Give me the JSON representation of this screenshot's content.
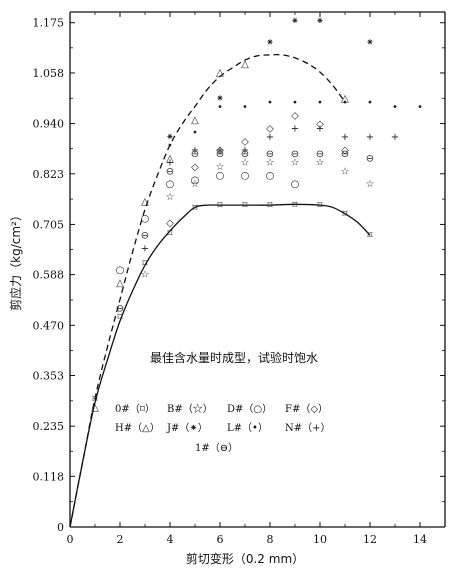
{
  "chart_data": {
    "type": "scatter",
    "title": "",
    "xlabel": "剪切变形（0.2 mm）",
    "ylabel": "剪应力（kg/cm²）",
    "xlim": [
      0,
      15
    ],
    "ylim": [
      0,
      1.2
    ],
    "x_ticks": [
      "0",
      "2",
      "4",
      "6",
      "8",
      "10",
      "12",
      "14"
    ],
    "x_tick_values": [
      0,
      2,
      4,
      6,
      8,
      10,
      12,
      14
    ],
    "y_ticks": [
      "0",
      "0.118",
      "0.235",
      "0.353",
      "0.470",
      "0.588",
      "0.705",
      "0.823",
      "0.940",
      "1.058",
      "1.175"
    ],
    "y_tick_values": [
      0,
      0.118,
      0.235,
      0.353,
      0.47,
      0.588,
      0.705,
      0.823,
      0.94,
      1.058,
      1.175
    ],
    "annotation": "最佳含水量时成型，试验时饱水",
    "legend": [
      {
        "label": "0#（",
        "symbol": "⌑",
        "close": "）"
      },
      {
        "label": "B#（",
        "symbol": "☆",
        "close": "）"
      },
      {
        "label": "D#（",
        "symbol": "○",
        "close": "）"
      },
      {
        "label": "F#（",
        "symbol": "◇",
        "close": "）"
      },
      {
        "label": "H#（",
        "symbol": "△",
        "close": "）"
      },
      {
        "label": "J#（",
        "symbol": "⁕",
        "close": "）"
      },
      {
        "label": "L#（",
        "symbol": "•",
        "close": "）"
      },
      {
        "label": "N#（",
        "symbol": "+",
        "close": "）"
      },
      {
        "label": "1#（",
        "symbol": "⊖",
        "close": "）"
      }
    ],
    "curves": [
      {
        "style": "solid",
        "x": [
          0,
          0.5,
          1,
          1.5,
          2,
          2.5,
          3,
          3.5,
          4,
          4.5,
          5,
          5.5,
          6,
          7,
          8,
          9,
          10,
          10.5,
          11,
          11.5,
          12
        ],
        "y": [
          0,
          0.15,
          0.29,
          0.39,
          0.48,
          0.55,
          0.61,
          0.655,
          0.69,
          0.72,
          0.745,
          0.75,
          0.75,
          0.75,
          0.75,
          0.752,
          0.75,
          0.745,
          0.73,
          0.71,
          0.68
        ]
      },
      {
        "style": "dashed",
        "x": [
          0,
          0.5,
          1,
          1.5,
          2,
          2.5,
          3,
          3.5,
          4,
          4.5,
          5,
          5.5,
          6,
          6.5,
          7,
          7.5,
          8,
          8.5,
          9,
          9.5,
          10,
          10.5,
          11
        ],
        "y": [
          0,
          0.15,
          0.3,
          0.42,
          0.53,
          0.64,
          0.74,
          0.82,
          0.89,
          0.94,
          0.98,
          1.02,
          1.05,
          1.07,
          1.088,
          1.098,
          1.1,
          1.1,
          1.093,
          1.08,
          1.06,
          1.03,
          0.99
        ]
      }
    ],
    "series": [
      {
        "symbol": "⌑",
        "x": [
          1,
          2,
          3,
          4,
          5,
          6,
          7,
          8,
          9,
          10,
          11,
          12
        ],
        "y": [
          0.3,
          0.49,
          0.615,
          0.685,
          0.745,
          0.75,
          0.75,
          0.75,
          0.752,
          0.75,
          0.73,
          0.68
        ]
      },
      {
        "symbol": "☆",
        "x": [
          3,
          4,
          5,
          6,
          7,
          8,
          9,
          10,
          11,
          12
        ],
        "y": [
          0.59,
          0.77,
          0.8,
          0.84,
          0.85,
          0.85,
          0.85,
          0.85,
          0.83,
          0.8
        ]
      },
      {
        "symbol": "○",
        "x": [
          2,
          3,
          4,
          5,
          6,
          7,
          8,
          9
        ],
        "y": [
          0.6,
          0.72,
          0.8,
          0.81,
          0.82,
          0.82,
          0.82,
          0.8
        ]
      },
      {
        "symbol": "◇",
        "x": [
          4,
          5,
          6,
          7,
          8,
          9,
          10,
          11
        ],
        "y": [
          0.71,
          0.84,
          0.88,
          0.9,
          0.93,
          0.96,
          0.94,
          0.88
        ]
      },
      {
        "symbol": "△",
        "x": [
          1,
          2,
          3,
          4,
          5,
          6,
          7,
          11
        ],
        "y": [
          0.28,
          0.57,
          0.76,
          0.86,
          0.95,
          1.06,
          1.08,
          1.0
        ]
      },
      {
        "symbol": "⁕",
        "x": [
          4,
          6,
          8,
          9,
          10,
          12
        ],
        "y": [
          0.91,
          1.0,
          1.13,
          1.18,
          1.18,
          1.13
        ]
      },
      {
        "symbol": "•",
        "x": [
          4,
          5,
          6,
          7,
          8,
          9,
          10,
          11,
          12,
          13,
          14
        ],
        "y": [
          0.89,
          0.92,
          0.98,
          0.98,
          0.99,
          0.99,
          0.99,
          0.99,
          0.99,
          0.98,
          0.98
        ]
      },
      {
        "symbol": "+",
        "x": [
          3,
          4,
          5,
          6,
          7,
          8,
          9,
          10,
          11,
          12,
          13
        ],
        "y": [
          0.65,
          0.85,
          0.88,
          0.88,
          0.88,
          0.91,
          0.93,
          0.93,
          0.91,
          0.91,
          0.91
        ]
      },
      {
        "symbol": "⊖",
        "x": [
          2,
          3,
          4,
          5,
          6,
          7,
          8,
          9,
          10,
          11,
          12
        ],
        "y": [
          0.51,
          0.68,
          0.83,
          0.87,
          0.87,
          0.87,
          0.87,
          0.87,
          0.87,
          0.87,
          0.86
        ]
      }
    ]
  }
}
